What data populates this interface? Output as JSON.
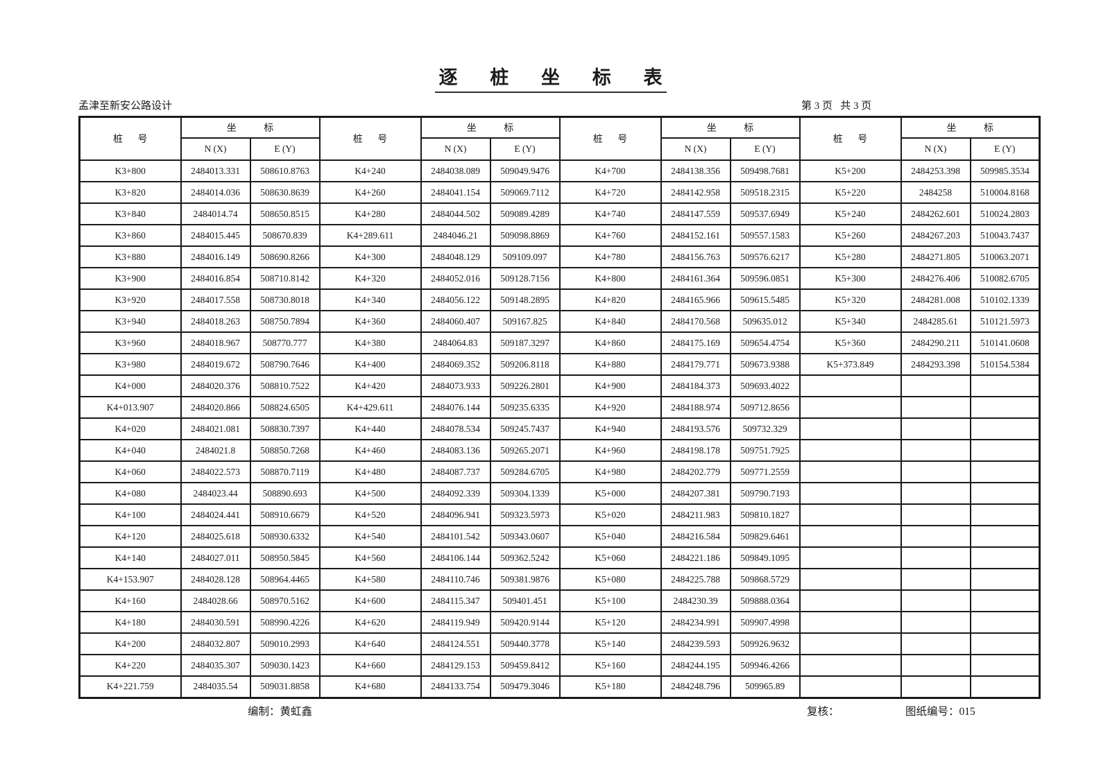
{
  "page": {
    "title": "逐 桩 坐 标 表",
    "project_name": "孟津至新安公路设计",
    "page_info": "第 3 页   共 3 页"
  },
  "table": {
    "row_count": 25,
    "headers": {
      "station": "桩 号",
      "coord": "坐 标",
      "nx": "N (X)",
      "ey": "E (Y)"
    },
    "groups": [
      {
        "rows": [
          [
            "K3+800",
            "2484013.331",
            "508610.8763"
          ],
          [
            "K3+820",
            "2484014.036",
            "508630.8639"
          ],
          [
            "K3+840",
            "2484014.74",
            "508650.8515"
          ],
          [
            "K3+860",
            "2484015.445",
            "508670.839"
          ],
          [
            "K3+880",
            "2484016.149",
            "508690.8266"
          ],
          [
            "K3+900",
            "2484016.854",
            "508710.8142"
          ],
          [
            "K3+920",
            "2484017.558",
            "508730.8018"
          ],
          [
            "K3+940",
            "2484018.263",
            "508750.7894"
          ],
          [
            "K3+960",
            "2484018.967",
            "508770.777"
          ],
          [
            "K3+980",
            "2484019.672",
            "508790.7646"
          ],
          [
            "K4+000",
            "2484020.376",
            "508810.7522"
          ],
          [
            "K4+013.907",
            "2484020.866",
            "508824.6505"
          ],
          [
            "K4+020",
            "2484021.081",
            "508830.7397"
          ],
          [
            "K4+040",
            "2484021.8",
            "508850.7268"
          ],
          [
            "K4+060",
            "2484022.573",
            "508870.7119"
          ],
          [
            "K4+080",
            "2484023.44",
            "508890.693"
          ],
          [
            "K4+100",
            "2484024.441",
            "508910.6679"
          ],
          [
            "K4+120",
            "2484025.618",
            "508930.6332"
          ],
          [
            "K4+140",
            "2484027.011",
            "508950.5845"
          ],
          [
            "K4+153.907",
            "2484028.128",
            "508964.4465"
          ],
          [
            "K4+160",
            "2484028.66",
            "508970.5162"
          ],
          [
            "K4+180",
            "2484030.591",
            "508990.4226"
          ],
          [
            "K4+200",
            "2484032.807",
            "509010.2993"
          ],
          [
            "K4+220",
            "2484035.307",
            "509030.1423"
          ],
          [
            "K4+221.759",
            "2484035.54",
            "509031.8858"
          ]
        ]
      },
      {
        "rows": [
          [
            "K4+240",
            "2484038.089",
            "509049.9476"
          ],
          [
            "K4+260",
            "2484041.154",
            "509069.7112"
          ],
          [
            "K4+280",
            "2484044.502",
            "509089.4289"
          ],
          [
            "K4+289.611",
            "2484046.21",
            "509098.8869"
          ],
          [
            "K4+300",
            "2484048.129",
            "509109.097"
          ],
          [
            "K4+320",
            "2484052.016",
            "509128.7156"
          ],
          [
            "K4+340",
            "2484056.122",
            "509148.2895"
          ],
          [
            "K4+360",
            "2484060.407",
            "509167.825"
          ],
          [
            "K4+380",
            "2484064.83",
            "509187.3297"
          ],
          [
            "K4+400",
            "2484069.352",
            "509206.8118"
          ],
          [
            "K4+420",
            "2484073.933",
            "509226.2801"
          ],
          [
            "K4+429.611",
            "2484076.144",
            "509235.6335"
          ],
          [
            "K4+440",
            "2484078.534",
            "509245.7437"
          ],
          [
            "K4+460",
            "2484083.136",
            "509265.2071"
          ],
          [
            "K4+480",
            "2484087.737",
            "509284.6705"
          ],
          [
            "K4+500",
            "2484092.339",
            "509304.1339"
          ],
          [
            "K4+520",
            "2484096.941",
            "509323.5973"
          ],
          [
            "K4+540",
            "2484101.542",
            "509343.0607"
          ],
          [
            "K4+560",
            "2484106.144",
            "509362.5242"
          ],
          [
            "K4+580",
            "2484110.746",
            "509381.9876"
          ],
          [
            "K4+600",
            "2484115.347",
            "509401.451"
          ],
          [
            "K4+620",
            "2484119.949",
            "509420.9144"
          ],
          [
            "K4+640",
            "2484124.551",
            "509440.3778"
          ],
          [
            "K4+660",
            "2484129.153",
            "509459.8412"
          ],
          [
            "K4+680",
            "2484133.754",
            "509479.3046"
          ]
        ]
      },
      {
        "rows": [
          [
            "K4+700",
            "2484138.356",
            "509498.7681"
          ],
          [
            "K4+720",
            "2484142.958",
            "509518.2315"
          ],
          [
            "K4+740",
            "2484147.559",
            "509537.6949"
          ],
          [
            "K4+760",
            "2484152.161",
            "509557.1583"
          ],
          [
            "K4+780",
            "2484156.763",
            "509576.6217"
          ],
          [
            "K4+800",
            "2484161.364",
            "509596.0851"
          ],
          [
            "K4+820",
            "2484165.966",
            "509615.5485"
          ],
          [
            "K4+840",
            "2484170.568",
            "509635.012"
          ],
          [
            "K4+860",
            "2484175.169",
            "509654.4754"
          ],
          [
            "K4+880",
            "2484179.771",
            "509673.9388"
          ],
          [
            "K4+900",
            "2484184.373",
            "509693.4022"
          ],
          [
            "K4+920",
            "2484188.974",
            "509712.8656"
          ],
          [
            "K4+940",
            "2484193.576",
            "509732.329"
          ],
          [
            "K4+960",
            "2484198.178",
            "509751.7925"
          ],
          [
            "K4+980",
            "2484202.779",
            "509771.2559"
          ],
          [
            "K5+000",
            "2484207.381",
            "509790.7193"
          ],
          [
            "K5+020",
            "2484211.983",
            "509810.1827"
          ],
          [
            "K5+040",
            "2484216.584",
            "509829.6461"
          ],
          [
            "K5+060",
            "2484221.186",
            "509849.1095"
          ],
          [
            "K5+080",
            "2484225.788",
            "509868.5729"
          ],
          [
            "K5+100",
            "2484230.39",
            "509888.0364"
          ],
          [
            "K5+120",
            "2484234.991",
            "509907.4998"
          ],
          [
            "K5+140",
            "2484239.593",
            "509926.9632"
          ],
          [
            "K5+160",
            "2484244.195",
            "509946.4266"
          ],
          [
            "K5+180",
            "2484248.796",
            "509965.89"
          ]
        ]
      },
      {
        "rows": [
          [
            "K5+200",
            "2484253.398",
            "509985.3534"
          ],
          [
            "K5+220",
            "2484258",
            "510004.8168"
          ],
          [
            "K5+240",
            "2484262.601",
            "510024.2803"
          ],
          [
            "K5+260",
            "2484267.203",
            "510043.7437"
          ],
          [
            "K5+280",
            "2484271.805",
            "510063.2071"
          ],
          [
            "K5+300",
            "2484276.406",
            "510082.6705"
          ],
          [
            "K5+320",
            "2484281.008",
            "510102.1339"
          ],
          [
            "K5+340",
            "2484285.61",
            "510121.5973"
          ],
          [
            "K5+360",
            "2484290.211",
            "510141.0608"
          ],
          [
            "K5+373.849",
            "2484293.398",
            "510154.5384"
          ]
        ]
      }
    ]
  },
  "footer": {
    "prepared": "编制：黄虹鑫",
    "reviewed": "复核：",
    "drawing_no": "图纸编号：015"
  }
}
